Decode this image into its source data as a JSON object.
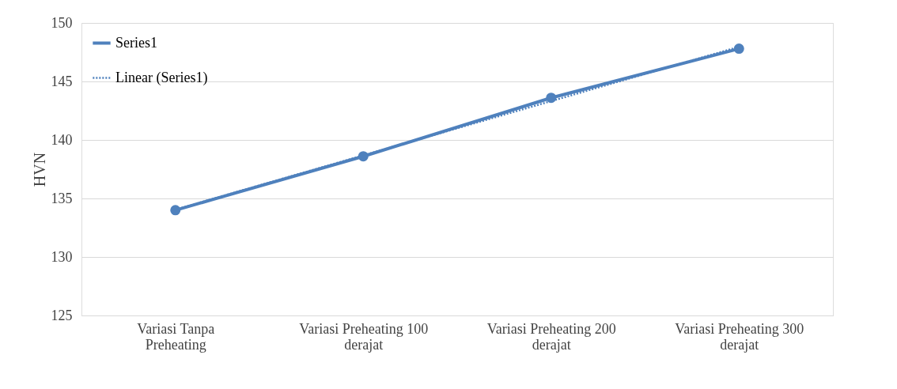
{
  "chart_data": {
    "type": "line",
    "ylabel": "HVN",
    "categories": [
      "Variasi Tanpa Preheating",
      "Variasi Preheating  100 derajat",
      "Variasi Preheating  200 derajat",
      "Variasi Preheating  300 derajat"
    ],
    "series": [
      {
        "name": "Series1",
        "color": "#4f81bd",
        "values": [
          134,
          138.6,
          143.6,
          147.8
        ],
        "marker": "circle",
        "line_style": "solid"
      },
      {
        "name": "Linear (Series1)",
        "color": "#4f81bd",
        "values": [
          134.04,
          138.68,
          143.32,
          147.96
        ],
        "marker": "none",
        "line_style": "dotted"
      }
    ],
    "ylim": [
      125,
      150
    ],
    "yticks": [
      125,
      130,
      135,
      140,
      145,
      150
    ],
    "grid": "y",
    "legend": "top left"
  }
}
